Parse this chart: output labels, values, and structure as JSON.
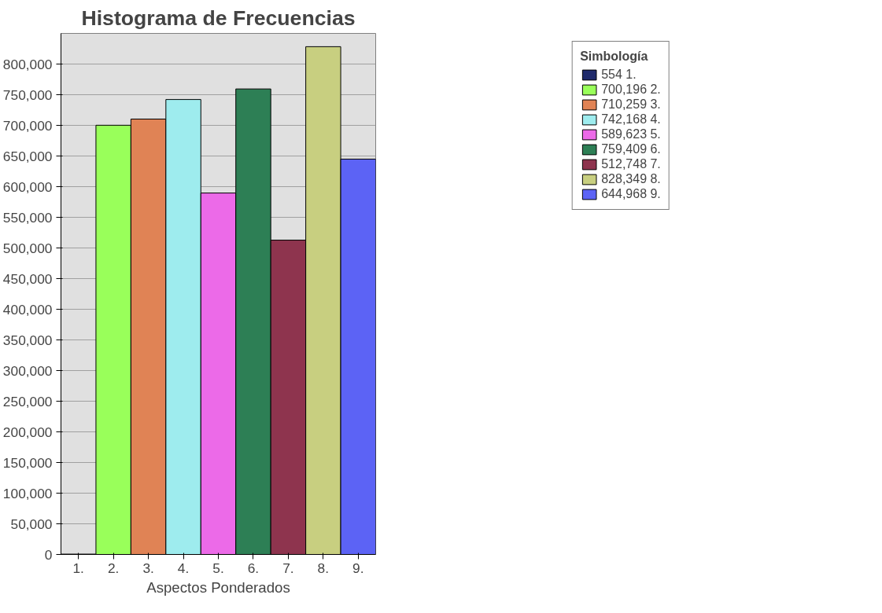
{
  "chart_data": {
    "type": "bar",
    "title": "Histograma de Frecuencias",
    "xlabel": "Aspectos Ponderados",
    "legend_title": "Simbología",
    "categories": [
      "1.",
      "2.",
      "3.",
      "4.",
      "5.",
      "6.",
      "7.",
      "8.",
      "9."
    ],
    "series": [
      {
        "name": "554 1.",
        "color": "#1f2a6b",
        "values": [
          554,
          null,
          null,
          null,
          null,
          null,
          null,
          null,
          null
        ]
      },
      {
        "name": "700,196 2.",
        "color": "#99ff5a",
        "values": [
          null,
          700196,
          null,
          null,
          null,
          null,
          null,
          null,
          null
        ]
      },
      {
        "name": "710,259 3.",
        "color": "#e08355",
        "values": [
          null,
          null,
          710259,
          null,
          null,
          null,
          null,
          null,
          null
        ]
      },
      {
        "name": "742,168 4.",
        "color": "#9eecee",
        "values": [
          null,
          null,
          null,
          742168,
          null,
          null,
          null,
          null,
          null
        ]
      },
      {
        "name": "589,623 5.",
        "color": "#ec6ae8",
        "values": [
          null,
          null,
          null,
          null,
          589623,
          null,
          null,
          null,
          null
        ]
      },
      {
        "name": "759,409 6.",
        "color": "#2d7f55",
        "values": [
          null,
          null,
          null,
          null,
          null,
          759409,
          null,
          null,
          null
        ]
      },
      {
        "name": "512,748 7.",
        "color": "#8e344e",
        "values": [
          null,
          null,
          null,
          null,
          null,
          null,
          512748,
          null,
          null
        ]
      },
      {
        "name": "828,349 8.",
        "color": "#c8cf80",
        "values": [
          null,
          null,
          null,
          null,
          null,
          null,
          null,
          828349,
          null
        ]
      },
      {
        "name": "644,968 9.",
        "color": "#5c63f5",
        "values": [
          null,
          null,
          null,
          null,
          null,
          null,
          null,
          null,
          644968
        ]
      }
    ],
    "ylim": [
      0,
      850000
    ],
    "yticks": [
      {
        "value": 0,
        "label": "0"
      },
      {
        "value": 50000,
        "label": "50,000"
      },
      {
        "value": 100000,
        "label": "100,000"
      },
      {
        "value": 150000,
        "label": "150,000"
      },
      {
        "value": 200000,
        "label": "200,000"
      },
      {
        "value": 250000,
        "label": "250,000"
      },
      {
        "value": 300000,
        "label": "300,000"
      },
      {
        "value": 350000,
        "label": "350,000"
      },
      {
        "value": 400000,
        "label": "400,000"
      },
      {
        "value": 450000,
        "label": "450,000"
      },
      {
        "value": 500000,
        "label": "500,000"
      },
      {
        "value": 550000,
        "label": "550,000"
      },
      {
        "value": 600000,
        "label": "600,000"
      },
      {
        "value": 650000,
        "label": "650,000"
      },
      {
        "value": 700000,
        "label": "700,000"
      },
      {
        "value": 750000,
        "label": "750,000"
      },
      {
        "value": 800000,
        "label": "800,000"
      }
    ],
    "grid": "y",
    "legend": "top right"
  }
}
